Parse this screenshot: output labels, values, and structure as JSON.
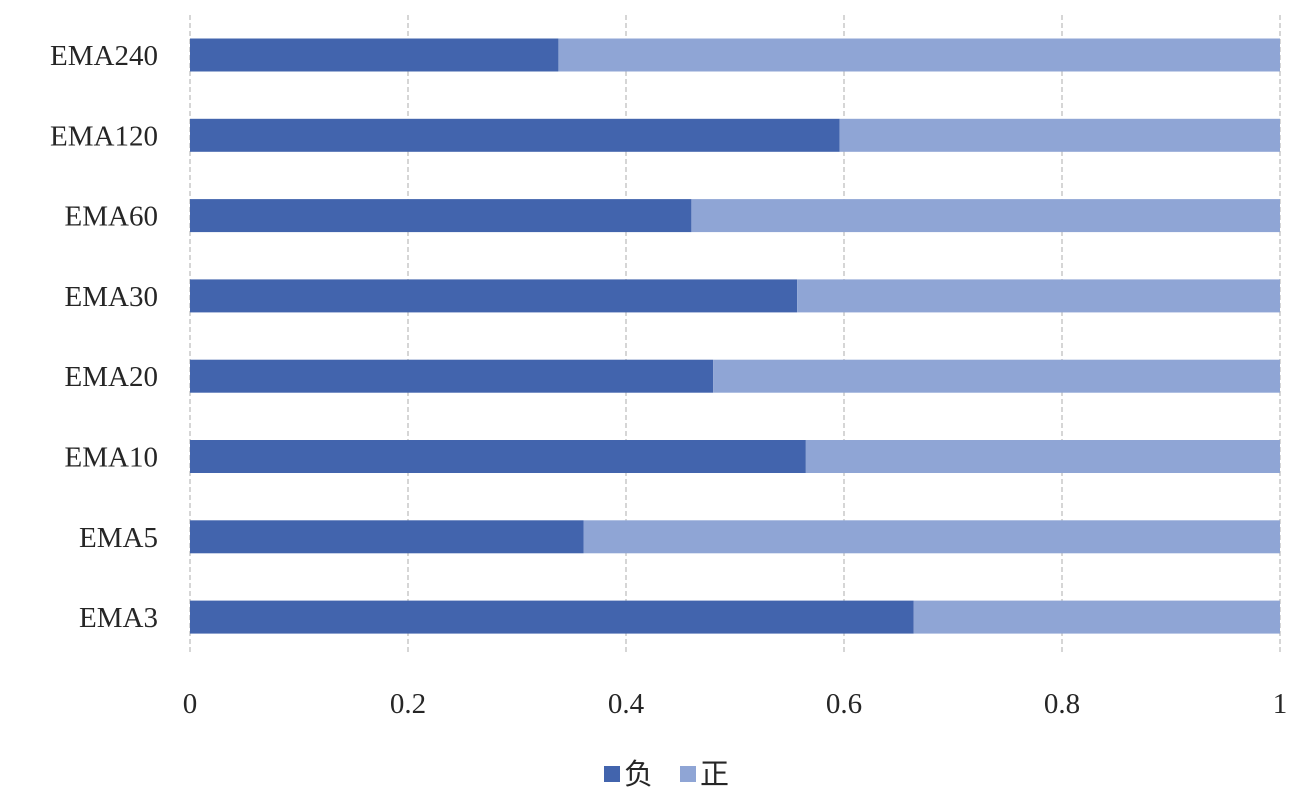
{
  "chart_data": {
    "type": "bar",
    "orientation": "horizontal",
    "stacked": true,
    "categories": [
      "EMA3",
      "EMA5",
      "EMA10",
      "EMA20",
      "EMA30",
      "EMA60",
      "EMA120",
      "EMA240"
    ],
    "series": [
      {
        "name": "负",
        "color": "#4264ad",
        "values": [
          0.664,
          0.361,
          0.565,
          0.48,
          0.557,
          0.46,
          0.596,
          0.338
        ]
      },
      {
        "name": "正",
        "color": "#8fa5d5",
        "values": [
          0.336,
          0.639,
          0.435,
          0.52,
          0.443,
          0.54,
          0.404,
          0.662
        ]
      }
    ],
    "xlim": [
      0,
      1
    ],
    "xticks": [
      0,
      0.2,
      0.4,
      0.6,
      0.8,
      1
    ],
    "xtick_labels": [
      "0",
      "0.2",
      "0.4",
      "0.6",
      "0.8",
      "1"
    ],
    "grid": "vertical-dashed",
    "legend": "bottom-center"
  }
}
